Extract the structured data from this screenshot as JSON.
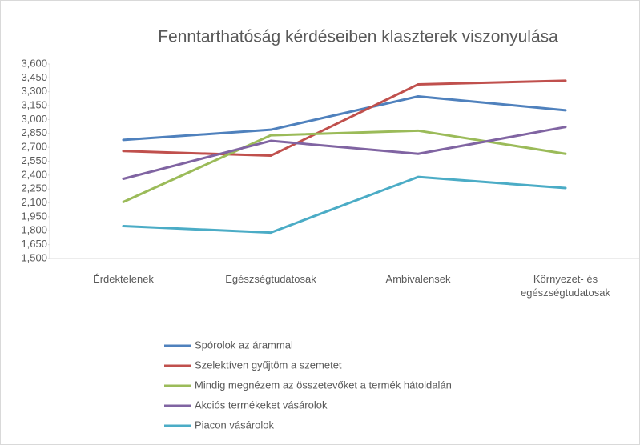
{
  "chart_data": {
    "type": "line",
    "title": "Fenntarthatóság kérdéseiben klaszterek viszonyulása",
    "categories": [
      "Érdektelenek",
      "Egészségtudatosak",
      "Ambivalensek",
      "Környezet- és egészségtudatosak"
    ],
    "series": [
      {
        "name": "Spórolok az árammal",
        "color": "#4f81bd",
        "values": [
          2.78,
          2.89,
          3.25,
          3.1
        ]
      },
      {
        "name": "Szelektíven gyűjtöm a szemetet",
        "color": "#c0504d",
        "values": [
          2.66,
          2.61,
          3.38,
          3.42
        ]
      },
      {
        "name": "Mindig megnézem az összetevőket a termék hátoldalán",
        "color": "#9bbb59",
        "values": [
          2.11,
          2.83,
          2.88,
          2.63
        ]
      },
      {
        "name": "Akciós termékeket vásárolok",
        "color": "#8064a2",
        "values": [
          2.36,
          2.77,
          2.63,
          2.92
        ]
      },
      {
        "name": "Piacon vásárolok",
        "color": "#4bacc6",
        "values": [
          1.85,
          1.78,
          2.38,
          2.26
        ]
      }
    ],
    "ylim": [
      1.5,
      3.6
    ],
    "yticks": [
      {
        "value": 1.5,
        "label": "1,500"
      },
      {
        "value": 1.65,
        "label": "1,650"
      },
      {
        "value": 1.8,
        "label": "1,800"
      },
      {
        "value": 1.95,
        "label": "1,950"
      },
      {
        "value": 2.1,
        "label": "2,100"
      },
      {
        "value": 2.25,
        "label": "2,250"
      },
      {
        "value": 2.4,
        "label": "2,400"
      },
      {
        "value": 2.55,
        "label": "2,550"
      },
      {
        "value": 2.7,
        "label": "2,700"
      },
      {
        "value": 2.85,
        "label": "2,850"
      },
      {
        "value": 3.0,
        "label": "3,000"
      },
      {
        "value": 3.15,
        "label": "3,150"
      },
      {
        "value": 3.3,
        "label": "3,300"
      },
      {
        "value": 3.45,
        "label": "3,450"
      },
      {
        "value": 3.6,
        "label": "3,600"
      }
    ],
    "grid": false,
    "legend": "bottom"
  }
}
